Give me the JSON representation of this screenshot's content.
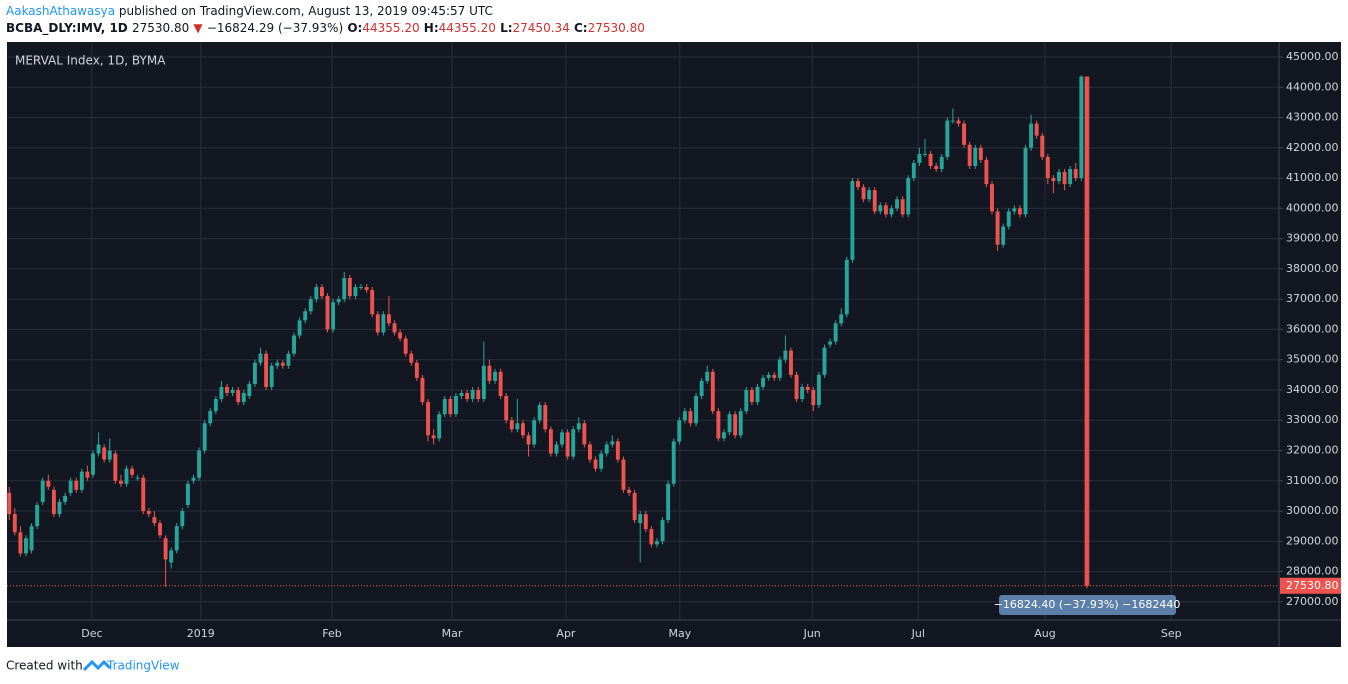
{
  "header": {
    "author": "AakashAthawasya",
    "published": "published on TradingView.com, August 13, 2019 09:45:57 UTC",
    "symbol": "BCBA_DLY:IMV, 1D",
    "last": "27530.80",
    "change": "−16824.29 (−37.93%)",
    "ohlc": [
      {
        "key": "O:",
        "value": "44355.20"
      },
      {
        "key": "H:",
        "value": "44355.20"
      },
      {
        "key": "L:",
        "value": "27450.34"
      },
      {
        "key": "C:",
        "value": "27530.80"
      }
    ]
  },
  "chart_data": {
    "type": "candlestick",
    "title": "MERVAL Index, 1D, BYMA",
    "up_color": "#26a69a",
    "down_color": "#ef5350",
    "grid": true,
    "candles": [
      [
        30600,
        30800,
        29700,
        29900
      ],
      [
        29900,
        30100,
        29200,
        29300
      ],
      [
        29300,
        29500,
        28500,
        28600
      ],
      [
        28600,
        29200,
        28500,
        29100
      ],
      [
        28700,
        29600,
        28600,
        29500
      ],
      [
        29500,
        30300,
        29400,
        30200
      ],
      [
        30300,
        31100,
        30200,
        31000
      ],
      [
        31000,
        31200,
        30700,
        30800
      ],
      [
        30700,
        30800,
        29800,
        29900
      ],
      [
        29900,
        30400,
        29800,
        30300
      ],
      [
        30300,
        30600,
        30200,
        30500
      ],
      [
        30600,
        31100,
        30500,
        31000
      ],
      [
        31000,
        31100,
        30600,
        30700
      ],
      [
        30700,
        31400,
        30600,
        31300
      ],
      [
        31300,
        31500,
        31000,
        31100
      ],
      [
        31200,
        32000,
        31100,
        31900
      ],
      [
        31900,
        32600,
        31800,
        32200
      ],
      [
        32100,
        32200,
        31600,
        31700
      ],
      [
        31700,
        32400,
        31600,
        32000
      ],
      [
        31900,
        32000,
        30900,
        31000
      ],
      [
        31000,
        31200,
        30800,
        30900
      ],
      [
        30900,
        31500,
        30800,
        31400
      ],
      [
        31400,
        31500,
        31100,
        31200
      ],
      [
        31100,
        31200,
        31000,
        31100
      ],
      [
        31100,
        31200,
        29900,
        30000
      ],
      [
        30000,
        30100,
        29800,
        29900
      ],
      [
        29800,
        30000,
        29500,
        29600
      ],
      [
        29600,
        29700,
        29100,
        29200
      ],
      [
        29100,
        29200,
        27500,
        28400
      ],
      [
        28300,
        28800,
        28100,
        28700
      ],
      [
        28700,
        29600,
        28600,
        29500
      ],
      [
        29500,
        30100,
        29400,
        30000
      ],
      [
        30200,
        31000,
        30100,
        30900
      ],
      [
        31000,
        31200,
        30900,
        31100
      ],
      [
        31100,
        32100,
        31000,
        32000
      ],
      [
        32000,
        33000,
        31900,
        32900
      ],
      [
        32900,
        33400,
        32800,
        33300
      ],
      [
        33300,
        33800,
        33200,
        33700
      ],
      [
        33700,
        34300,
        33600,
        34100
      ],
      [
        34100,
        34200,
        33800,
        33900
      ],
      [
        33900,
        34100,
        33800,
        34000
      ],
      [
        34000,
        34100,
        33500,
        33600
      ],
      [
        33600,
        34000,
        33500,
        33900
      ],
      [
        33800,
        34300,
        33700,
        34200
      ],
      [
        34200,
        35000,
        34100,
        34900
      ],
      [
        34900,
        35400,
        34800,
        35200
      ],
      [
        35200,
        35300,
        34000,
        34100
      ],
      [
        34100,
        34900,
        34000,
        34800
      ],
      [
        34800,
        35000,
        34700,
        34900
      ],
      [
        34900,
        35000,
        34700,
        34800
      ],
      [
        34800,
        35300,
        34700,
        35200
      ],
      [
        35200,
        35900,
        35100,
        35800
      ],
      [
        35800,
        36400,
        35700,
        36300
      ],
      [
        36300,
        36700,
        36200,
        36600
      ],
      [
        36600,
        37100,
        36500,
        37000
      ],
      [
        37000,
        37500,
        36900,
        37400
      ],
      [
        37400,
        37500,
        37000,
        37100
      ],
      [
        37100,
        37200,
        35900,
        36000
      ],
      [
        36000,
        37000,
        35900,
        36900
      ],
      [
        36900,
        37100,
        36800,
        37000
      ],
      [
        37000,
        37900,
        36900,
        37700
      ],
      [
        37700,
        37800,
        37000,
        37100
      ],
      [
        37100,
        37500,
        37000,
        37400
      ],
      [
        37400,
        37500,
        37300,
        37400
      ],
      [
        37400,
        37500,
        37200,
        37300
      ],
      [
        37300,
        37400,
        36400,
        36500
      ],
      [
        36500,
        36600,
        35800,
        35900
      ],
      [
        35900,
        36600,
        35800,
        36500
      ],
      [
        36500,
        37100,
        36100,
        36200
      ],
      [
        36200,
        36300,
        35800,
        35900
      ],
      [
        35900,
        36000,
        35600,
        35700
      ],
      [
        35700,
        35800,
        35100,
        35200
      ],
      [
        35200,
        35300,
        34800,
        34900
      ],
      [
        34900,
        35000,
        34300,
        34400
      ],
      [
        34400,
        34500,
        33500,
        33600
      ],
      [
        33600,
        33700,
        32300,
        32500
      ],
      [
        32500,
        32700,
        32200,
        32400
      ],
      [
        32400,
        33300,
        32300,
        33200
      ],
      [
        33200,
        33800,
        33100,
        33700
      ],
      [
        33700,
        33800,
        33100,
        33200
      ],
      [
        33200,
        33900,
        33100,
        33800
      ],
      [
        33800,
        34000,
        33700,
        33900
      ],
      [
        33900,
        34000,
        33600,
        33700
      ],
      [
        33700,
        34100,
        33600,
        34000
      ],
      [
        34000,
        34100,
        33600,
        33700
      ],
      [
        33700,
        35600,
        33600,
        34800
      ],
      [
        34800,
        35000,
        34200,
        34300
      ],
      [
        34300,
        34700,
        34200,
        34600
      ],
      [
        34600,
        34700,
        33700,
        33800
      ],
      [
        33800,
        33900,
        32900,
        33000
      ],
      [
        33000,
        33100,
        32600,
        32700
      ],
      [
        32700,
        33700,
        32600,
        32900
      ],
      [
        32900,
        33000,
        32400,
        32500
      ],
      [
        32500,
        32600,
        31800,
        32200
      ],
      [
        32200,
        33100,
        32100,
        33000
      ],
      [
        33000,
        33600,
        32900,
        33500
      ],
      [
        33500,
        33600,
        32600,
        32700
      ],
      [
        32700,
        32800,
        31800,
        31900
      ],
      [
        31900,
        32300,
        31800,
        32200
      ],
      [
        32200,
        32700,
        32100,
        32600
      ],
      [
        32600,
        32700,
        31700,
        31800
      ],
      [
        31800,
        32800,
        31700,
        32700
      ],
      [
        32700,
        33100,
        32600,
        32900
      ],
      [
        32900,
        33000,
        32100,
        32200
      ],
      [
        32200,
        32300,
        31600,
        31700
      ],
      [
        31700,
        31800,
        31300,
        31400
      ],
      [
        31400,
        32000,
        31300,
        31900
      ],
      [
        31900,
        32300,
        31800,
        32200
      ],
      [
        32200,
        32500,
        32100,
        32300
      ],
      [
        32300,
        32400,
        31600,
        31700
      ],
      [
        31700,
        31800,
        30600,
        30700
      ],
      [
        30700,
        30800,
        30500,
        30600
      ],
      [
        30600,
        30700,
        29600,
        29700
      ],
      [
        29600,
        30000,
        28300,
        29900
      ],
      [
        29900,
        30000,
        29300,
        29400
      ],
      [
        29400,
        29500,
        28800,
        28900
      ],
      [
        28900,
        29100,
        28800,
        29000
      ],
      [
        29000,
        29800,
        28900,
        29700
      ],
      [
        29700,
        31000,
        29600,
        30900
      ],
      [
        30900,
        32400,
        30800,
        32300
      ],
      [
        32300,
        33100,
        32200,
        33000
      ],
      [
        33000,
        33400,
        32900,
        33300
      ],
      [
        33300,
        33400,
        32800,
        32900
      ],
      [
        32900,
        33900,
        32800,
        33800
      ],
      [
        33800,
        34400,
        33700,
        34300
      ],
      [
        34300,
        34800,
        34200,
        34600
      ],
      [
        34600,
        34700,
        33200,
        33300
      ],
      [
        33300,
        33400,
        32300,
        32400
      ],
      [
        32400,
        32700,
        32300,
        32600
      ],
      [
        32600,
        33300,
        32500,
        33200
      ],
      [
        33200,
        33300,
        32400,
        32500
      ],
      [
        32500,
        33400,
        32400,
        33300
      ],
      [
        33300,
        34100,
        33200,
        34000
      ],
      [
        34000,
        34100,
        33500,
        33600
      ],
      [
        33600,
        34200,
        33500,
        34100
      ],
      [
        34100,
        34500,
        34000,
        34400
      ],
      [
        34400,
        34600,
        34300,
        34500
      ],
      [
        34500,
        34600,
        34300,
        34400
      ],
      [
        34400,
        35100,
        34300,
        35000
      ],
      [
        35000,
        35800,
        34900,
        35300
      ],
      [
        35300,
        35400,
        34400,
        34500
      ],
      [
        34500,
        34600,
        33600,
        33700
      ],
      [
        33700,
        34200,
        33600,
        34100
      ],
      [
        34100,
        34200,
        33900,
        34000
      ],
      [
        34000,
        34100,
        33300,
        33500
      ],
      [
        33500,
        34600,
        33400,
        34500
      ],
      [
        34500,
        35500,
        34400,
        35400
      ],
      [
        35500,
        35700,
        35400,
        35600
      ],
      [
        35600,
        36300,
        35500,
        36200
      ],
      [
        36200,
        36700,
        36100,
        36500
      ],
      [
        36500,
        38400,
        36400,
        38300
      ],
      [
        38300,
        41000,
        38200,
        40900
      ],
      [
        40900,
        41000,
        40600,
        40700
      ],
      [
        40700,
        40800,
        40200,
        40300
      ],
      [
        40300,
        40700,
        40200,
        40600
      ],
      [
        40600,
        40700,
        39800,
        39900
      ],
      [
        39900,
        40200,
        39800,
        40100
      ],
      [
        40100,
        40200,
        39700,
        39800
      ],
      [
        39800,
        40100,
        39700,
        40000
      ],
      [
        40000,
        40400,
        39900,
        40300
      ],
      [
        40300,
        40400,
        39700,
        39800
      ],
      [
        39800,
        41100,
        39700,
        41000
      ],
      [
        41000,
        41600,
        40900,
        41500
      ],
      [
        41500,
        42000,
        41400,
        41800
      ],
      [
        41800,
        42300,
        41700,
        41800
      ],
      [
        41800,
        41900,
        41300,
        41400
      ],
      [
        41400,
        41500,
        41200,
        41300
      ],
      [
        41300,
        41800,
        41200,
        41700
      ],
      [
        41700,
        43000,
        41600,
        42900
      ],
      [
        42900,
        43300,
        42800,
        42900
      ],
      [
        42900,
        43000,
        42700,
        42800
      ],
      [
        42800,
        42900,
        42000,
        42100
      ],
      [
        42100,
        42200,
        41300,
        41400
      ],
      [
        41400,
        42100,
        41300,
        42000
      ],
      [
        42000,
        42100,
        41500,
        41600
      ],
      [
        41600,
        41700,
        40700,
        40800
      ],
      [
        40800,
        40900,
        39800,
        39900
      ],
      [
        39900,
        40000,
        38600,
        38800
      ],
      [
        38800,
        39500,
        38700,
        39400
      ],
      [
        39400,
        40000,
        39300,
        39900
      ],
      [
        39900,
        40100,
        39800,
        40000
      ],
      [
        40000,
        40100,
        39700,
        39800
      ],
      [
        39800,
        42100,
        39700,
        42000
      ],
      [
        42000,
        43100,
        41900,
        42800
      ],
      [
        42800,
        42900,
        42300,
        42400
      ],
      [
        42400,
        42500,
        41600,
        41700
      ],
      [
        41700,
        41800,
        40800,
        41000
      ],
      [
        41000,
        41100,
        40500,
        40900
      ],
      [
        40900,
        41300,
        40800,
        41200
      ],
      [
        41200,
        41300,
        40600,
        40800
      ],
      [
        40800,
        41400,
        40700,
        41300
      ],
      [
        41300,
        41500,
        40900,
        41000
      ],
      [
        41000,
        44400,
        40900,
        44355.09
      ],
      [
        44355.2,
        44355.2,
        27450.34,
        27530.8
      ]
    ],
    "xlim": [
      -0.4,
      227.4
    ],
    "xticks": [
      {
        "value": 14.8,
        "label": "Dec"
      },
      {
        "value": 34.3,
        "label": "2019"
      },
      {
        "value": 57.8,
        "label": "Feb"
      },
      {
        "value": 79.3,
        "label": "Mar"
      },
      {
        "value": 99.7,
        "label": "Apr"
      },
      {
        "value": 120.1,
        "label": "May"
      },
      {
        "value": 143.8,
        "label": "Jun"
      },
      {
        "value": 162.8,
        "label": "Jul"
      },
      {
        "value": 185.5,
        "label": "Aug"
      },
      {
        "value": 208.1,
        "label": "Sep"
      }
    ],
    "ylim": [
      26400,
      45430
    ],
    "yticks": [
      {
        "value": 27000,
        "label": "27000.00"
      },
      {
        "value": 28000,
        "label": "28000.00"
      },
      {
        "value": 29000,
        "label": "29000.00"
      },
      {
        "value": 30000,
        "label": "30000.00"
      },
      {
        "value": 31000,
        "label": "31000.00"
      },
      {
        "value": 32000,
        "label": "32000.00"
      },
      {
        "value": 33000,
        "label": "33000.00"
      },
      {
        "value": 34000,
        "label": "34000.00"
      },
      {
        "value": 35000,
        "label": "35000.00"
      },
      {
        "value": 36000,
        "label": "36000.00"
      },
      {
        "value": 37000,
        "label": "37000.00"
      },
      {
        "value": 38000,
        "label": "38000.00"
      },
      {
        "value": 39000,
        "label": "39000.00"
      },
      {
        "value": 40000,
        "label": "40000.00"
      },
      {
        "value": 41000,
        "label": "41000.00"
      },
      {
        "value": 42000,
        "label": "42000.00"
      },
      {
        "value": 43000,
        "label": "43000.00"
      },
      {
        "value": 44000,
        "label": "44000.00"
      },
      {
        "value": 45000,
        "label": "45000.00"
      }
    ],
    "last_price": {
      "value": 27530.8,
      "label": "27530.80"
    },
    "measure": {
      "from": 44355.2,
      "to": 27530.8,
      "label": "−16824.40 (−37.93%) −1682440"
    }
  },
  "footer": {
    "prefix": "Created with",
    "brand": "TradingView"
  }
}
